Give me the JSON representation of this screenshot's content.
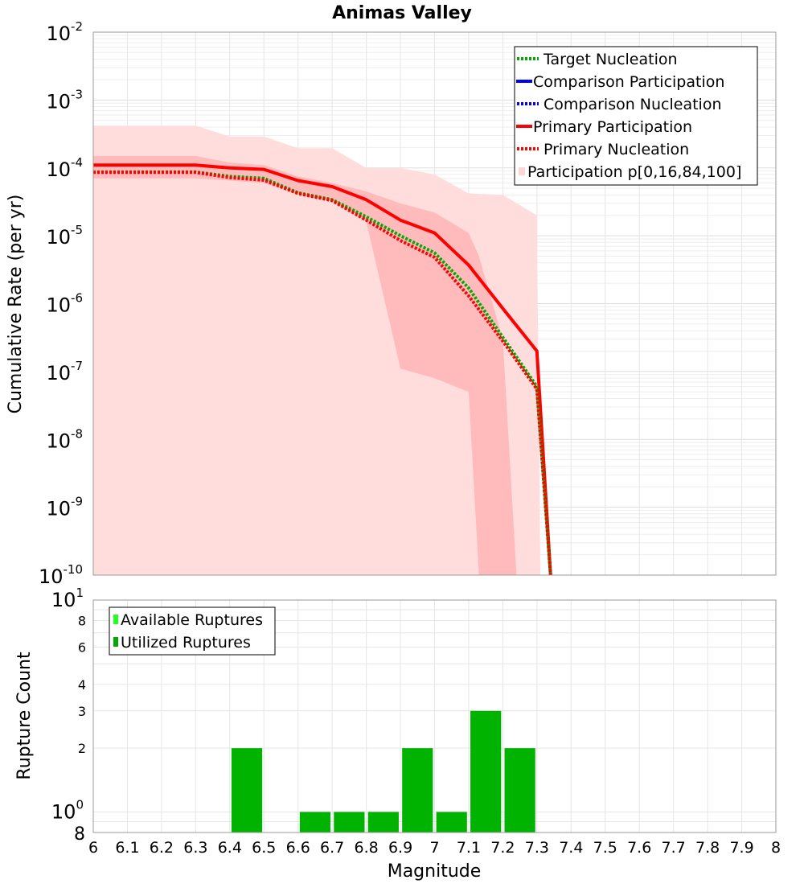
{
  "chart_data": [
    {
      "type": "line",
      "title": "Animas Valley",
      "ylabel": "Cumulative Rate (per yr)",
      "xlabel": "",
      "yscale": "log",
      "xlim": [
        6,
        8
      ],
      "ylim": [
        1e-10,
        0.01
      ],
      "y_tick_bases": [
        "10",
        "10",
        "10",
        "10",
        "10",
        "10",
        "10",
        "10",
        "10"
      ],
      "y_tick_exponents": [
        "-10",
        "-9",
        "-8",
        "-7",
        "-6",
        "-5",
        "-4",
        "-3",
        "-2"
      ],
      "legend_position": "top-right",
      "legend": [
        {
          "label": "Target Nucleation",
          "color": "#00aa00",
          "style": "dotted"
        },
        {
          "label": "Comparison Participation",
          "color": "#0000ff",
          "style": "solid"
        },
        {
          "label": "Comparison Nucleation",
          "color": "#0000ff",
          "style": "dotted"
        },
        {
          "label": "Primary Participation",
          "color": "#ff0000",
          "style": "solid"
        },
        {
          "label": "Primary Nucleation",
          "color": "#ff0000",
          "style": "dotted"
        },
        {
          "label": "Participation p[0,16,84,100]",
          "color": "#ffd6d6",
          "style": "fill"
        }
      ],
      "x": [
        6.0,
        6.1,
        6.2,
        6.3,
        6.4,
        6.5,
        6.6,
        6.7,
        6.8,
        6.9,
        7.0,
        7.1,
        7.2,
        7.3,
        7.34
      ],
      "series": [
        {
          "name": "Primary Participation",
          "color": "#ff0000",
          "style": "solid",
          "values": [
            0.00011,
            0.00011,
            0.00011,
            0.00011,
            0.0001,
            9.5e-05,
            6.5e-05,
            5.3e-05,
            3.4e-05,
            1.7e-05,
            1.1e-05,
            3.7e-06,
            8.5e-07,
            2e-07,
            1e-10
          ]
        },
        {
          "name": "Target Nucleation",
          "color": "#00aa00",
          "style": "dotted",
          "values": [
            8.7e-05,
            8.7e-05,
            8.7e-05,
            8.7e-05,
            7.5e-05,
            7e-05,
            4.3e-05,
            3.4e-05,
            1.9e-05,
            1e-05,
            5.6e-06,
            1.7e-06,
            3.2e-07,
            6e-08,
            1e-10
          ]
        },
        {
          "name": "Primary Nucleation",
          "color": "#ff0000",
          "style": "dotted",
          "values": [
            8.6e-05,
            8.6e-05,
            8.6e-05,
            8.6e-05,
            7.2e-05,
            6.6e-05,
            4.2e-05,
            3.3e-05,
            1.7e-05,
            8.5e-06,
            4.8e-06,
            1.3e-06,
            2.8e-07,
            5.5e-08,
            1e-10
          ]
        }
      ],
      "bands": [
        {
          "name": "p0-p100",
          "color": "#ffdddd",
          "x": [
            6.0,
            6.1,
            6.2,
            6.3,
            6.4,
            6.5,
            6.6,
            6.7,
            6.8,
            6.9,
            7.0,
            7.1,
            7.2,
            7.3,
            7.31
          ],
          "upper": [
            0.00042,
            0.00042,
            0.00042,
            0.00042,
            0.00029,
            0.00029,
            0.000195,
            0.000195,
            0.0001,
            0.0001,
            8e-05,
            4.2e-05,
            4e-05,
            2e-05,
            1e-10
          ],
          "lower": [
            1e-10,
            1e-10,
            1e-10,
            1e-10,
            1e-10,
            1e-10,
            1e-10,
            1e-10,
            1e-10,
            1e-10,
            1e-10,
            1e-10,
            1e-10,
            1e-10,
            1e-10
          ]
        },
        {
          "name": "p16-p84",
          "color": "#ffbbbb",
          "x": [
            6.0,
            6.1,
            6.2,
            6.3,
            6.4,
            6.5,
            6.6,
            6.7,
            6.8,
            6.9,
            7.0,
            7.1,
            7.13,
            7.2,
            7.24
          ],
          "upper": [
            0.00015,
            0.00015,
            0.00015,
            0.00015,
            0.00012,
            0.00011,
            7.5e-05,
            6e-05,
            4.5e-05,
            3e-05,
            2.2e-05,
            1.1e-05,
            5e-06,
            3e-07,
            1e-10
          ],
          "lower": [
            7e-05,
            7e-05,
            7e-05,
            7e-05,
            6.5e-05,
            6e-05,
            4e-05,
            3.2e-05,
            1.6e-05,
            1.1e-07,
            8e-08,
            5e-08,
            1e-10,
            1e-10,
            1e-10
          ]
        }
      ]
    },
    {
      "type": "bar",
      "title": "",
      "xlabel": "Magnitude",
      "ylabel": "Rupture Count",
      "yscale": "log",
      "xlim": [
        6,
        8
      ],
      "ylim": [
        0.8,
        10
      ],
      "x_ticks": [
        "6",
        "6.1",
        "6.2",
        "6.3",
        "6.4",
        "6.5",
        "6.6",
        "6.7",
        "6.8",
        "6.9",
        "7",
        "7.1",
        "7.2",
        "7.3",
        "7.4",
        "7.5",
        "7.6",
        "7.7",
        "7.8",
        "7.9",
        "8"
      ],
      "y_minor_labels": [
        "8",
        "2",
        "3",
        "4",
        "6",
        "8"
      ],
      "y_major_bases": [
        "10",
        "10"
      ],
      "y_major_exponents": [
        "0",
        "1"
      ],
      "legend_position": "top-left",
      "legend": [
        {
          "label": "Available Ruptures",
          "color": "#22ff22"
        },
        {
          "label": "Utilized Ruptures",
          "color": "#00aa00"
        }
      ],
      "bar_width": 0.09,
      "series": [
        {
          "name": "Utilized Ruptures",
          "color": "#00b300",
          "centers": [
            6.45,
            6.65,
            6.75,
            6.85,
            6.95,
            7.05,
            7.15,
            7.25
          ],
          "values": [
            2,
            1,
            1,
            1,
            2,
            1,
            3,
            2
          ]
        }
      ]
    }
  ]
}
